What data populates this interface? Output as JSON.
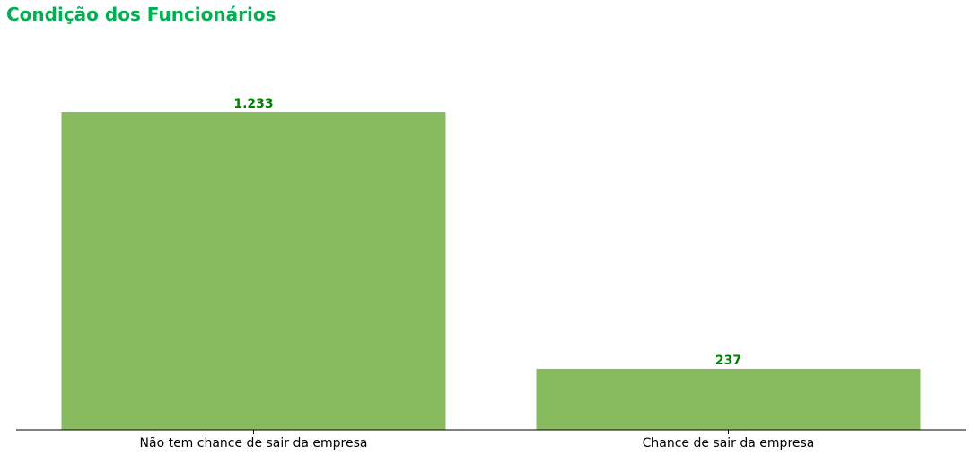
{
  "chart_data": {
    "type": "bar",
    "title": "Condição dos Funcionários",
    "categories": [
      "Não tem chance de sair da empresa",
      "Chance de sair da empresa"
    ],
    "values": [
      1233,
      237
    ],
    "data_labels": [
      "1.233",
      "237"
    ],
    "xlabel": "",
    "ylabel": "",
    "ylim": [
      0,
      1233
    ],
    "grid": false,
    "legend": "none",
    "colors": {
      "bar": "#87bb5d",
      "title": "#00b050",
      "data_label": "#008000",
      "axis": "#000000"
    }
  }
}
